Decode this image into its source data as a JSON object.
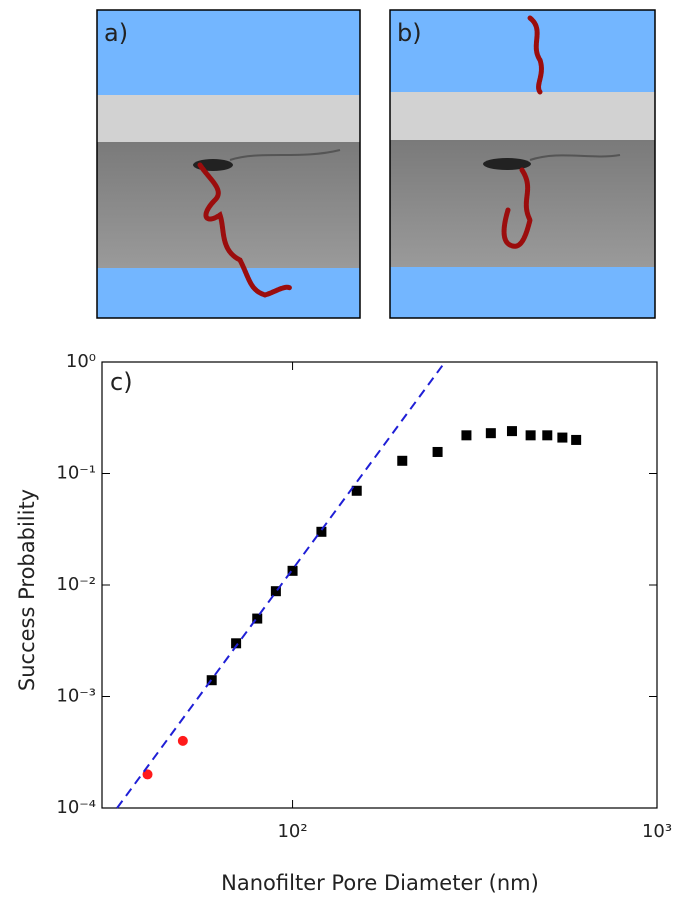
{
  "panels": [
    {
      "label": "a)"
    },
    {
      "label": "b)"
    }
  ],
  "chart_data": {
    "type": "scatter",
    "panel_label": "c)",
    "x_label": "Nanofilter Pore Diameter (nm)",
    "y_label": "Success Probability",
    "xscale": "log",
    "yscale": "log",
    "xlim": [
      30,
      1000
    ],
    "ylim": [
      0.0001,
      1
    ],
    "xticks": [
      {
        "value": 100,
        "label": "10²"
      },
      {
        "value": 1000,
        "label": "10³"
      }
    ],
    "yticks": [
      {
        "value": 0.0001,
        "label": "10⁻⁴"
      },
      {
        "value": 0.001,
        "label": "10⁻³"
      },
      {
        "value": 0.01,
        "label": "10⁻²"
      },
      {
        "value": 0.1,
        "label": "10⁻¹"
      },
      {
        "value": 1,
        "label": "10⁰"
      }
    ],
    "series": [
      {
        "color": "#000000",
        "marker": "square",
        "x": [
          60,
          70,
          80,
          90,
          100,
          120,
          150,
          200,
          250,
          300,
          350,
          400,
          450,
          500,
          550,
          600
        ],
        "values": [
          0.0014,
          0.003,
          0.005,
          0.0088,
          0.0134,
          0.03,
          0.07,
          0.13,
          0.156,
          0.22,
          0.23,
          0.24,
          0.22,
          0.22,
          0.21,
          0.2
        ]
      },
      {
        "color": "#ff1a1a",
        "marker": "circle",
        "x": [
          40,
          50
        ],
        "values": [
          0.0002,
          0.0004
        ]
      },
      {
        "color": "#1f1fd6",
        "marker": "none",
        "linestyle": "dashed",
        "x": [
          33,
          262
        ],
        "values": [
          0.0001,
          1
        ]
      }
    ]
  }
}
